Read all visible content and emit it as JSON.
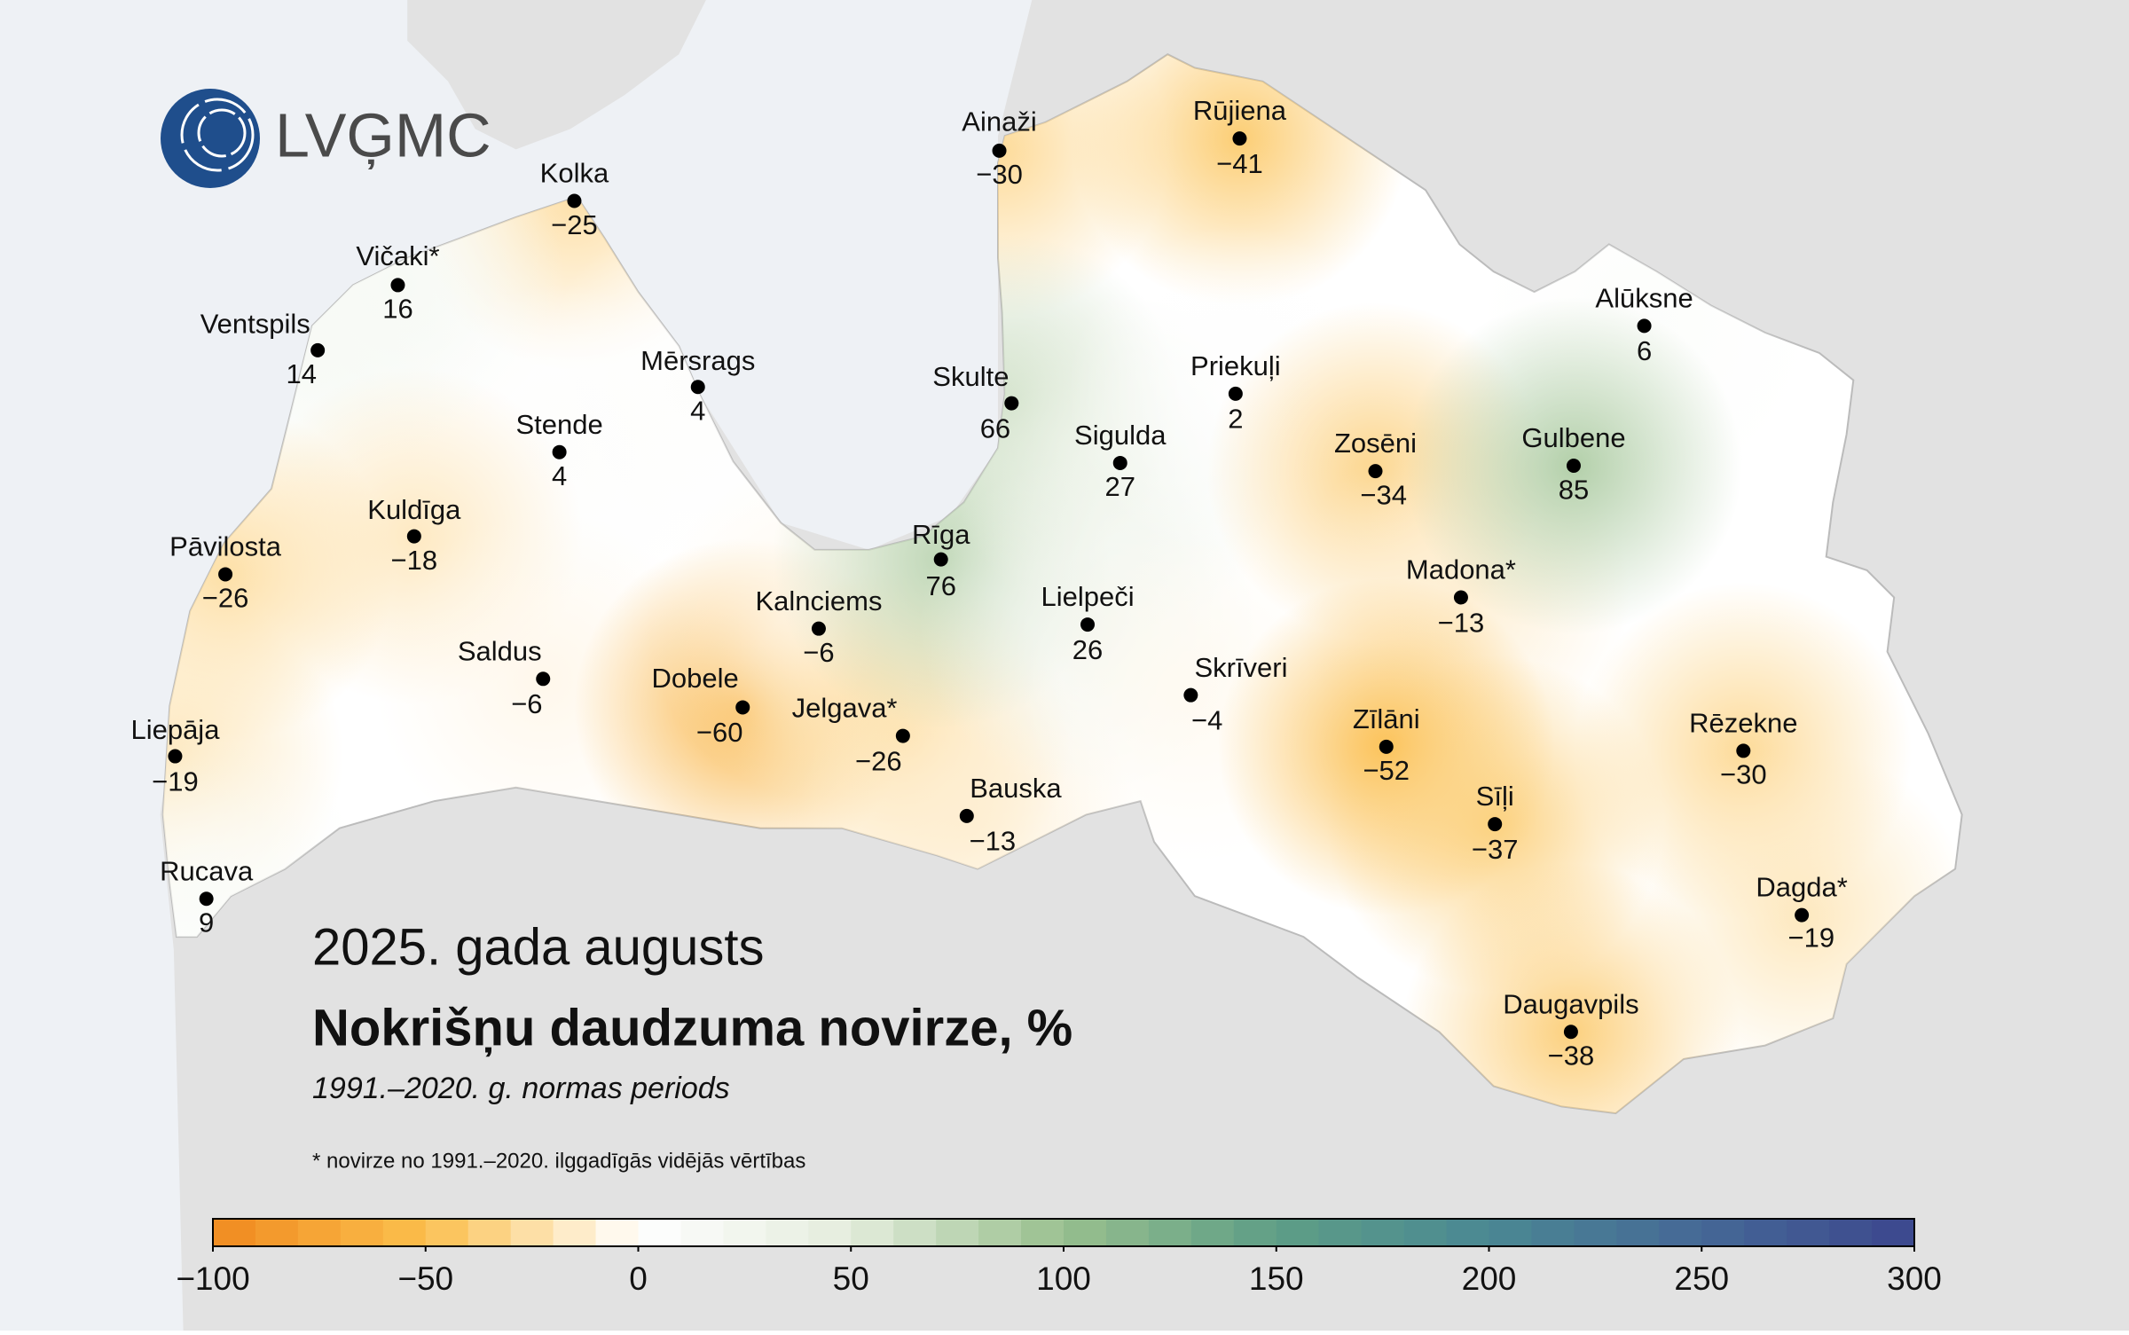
{
  "logo": {
    "text": "LVĢMC"
  },
  "title": "2025. gada augusts",
  "heading": "Nokrišņu daudzuma novirze, %",
  "subtitle": "1991.–2020. g. normas periods",
  "note": "* novirze no 1991.–2020. ilggadīgās vidējās vērtības",
  "stations": [
    {
      "name": "Kolka",
      "value": -25,
      "label": "−25"
    },
    {
      "name": "Vičaki*",
      "value": 16
    },
    {
      "name": "Ventspils",
      "value": 14
    },
    {
      "name": "Mērsrags",
      "value": 4
    },
    {
      "name": "Stende",
      "value": 4
    },
    {
      "name": "Kuldīga",
      "value": -18,
      "label": "−18"
    },
    {
      "name": "Pāvilosta",
      "value": -26,
      "label": "−26"
    },
    {
      "name": "Saldus",
      "value": -6,
      "label": "−6"
    },
    {
      "name": "Liepāja",
      "value": -19,
      "label": "−19"
    },
    {
      "name": "Rucava",
      "value": 9
    },
    {
      "name": "Dobele",
      "value": -60,
      "label": "−60"
    },
    {
      "name": "Kalnciems",
      "value": -6,
      "label": "−6"
    },
    {
      "name": "Jelgava*",
      "value": -26,
      "label": "−26"
    },
    {
      "name": "Bauska",
      "value": -13,
      "label": "−13"
    },
    {
      "name": "Rīga",
      "value": 76
    },
    {
      "name": "Ainaži",
      "value": -30,
      "label": "−30"
    },
    {
      "name": "Skulte",
      "value": 66
    },
    {
      "name": "Sigulda",
      "value": 27
    },
    {
      "name": "Lielpeči",
      "value": 26
    },
    {
      "name": "Skrīveri",
      "value": -4,
      "label": "−4"
    },
    {
      "name": "Rūjiena",
      "value": -41,
      "label": "−41"
    },
    {
      "name": "Priekuļi",
      "value": 2
    },
    {
      "name": "Zosēni",
      "value": -34,
      "label": "−34"
    },
    {
      "name": "Madona*",
      "value": -13,
      "label": "−13"
    },
    {
      "name": "Zīlāni",
      "value": -52,
      "label": "−52"
    },
    {
      "name": "Sīļi",
      "value": -37,
      "label": "−37"
    },
    {
      "name": "Daugavpils",
      "value": -38,
      "label": "−38"
    },
    {
      "name": "Alūksne",
      "value": 6
    },
    {
      "name": "Gulbene",
      "value": 85
    },
    {
      "name": "Rēzekne",
      "value": -30,
      "label": "−30"
    },
    {
      "name": "Dagda*",
      "value": -19,
      "label": "−19"
    }
  ],
  "colorbar": {
    "range": [
      -100,
      300
    ],
    "ticks": [
      {
        "value": -100,
        "label": "−100"
      },
      {
        "value": -50,
        "label": "−50"
      },
      0,
      50,
      100,
      150,
      200,
      250,
      300
    ],
    "colors": [
      "#f08a1f",
      "#fbbf4d",
      "#ffffff",
      "#e4ecdc",
      "#98bf8e",
      "#5e9e86",
      "#4a8893",
      "#456896",
      "#3c478e"
    ]
  }
}
